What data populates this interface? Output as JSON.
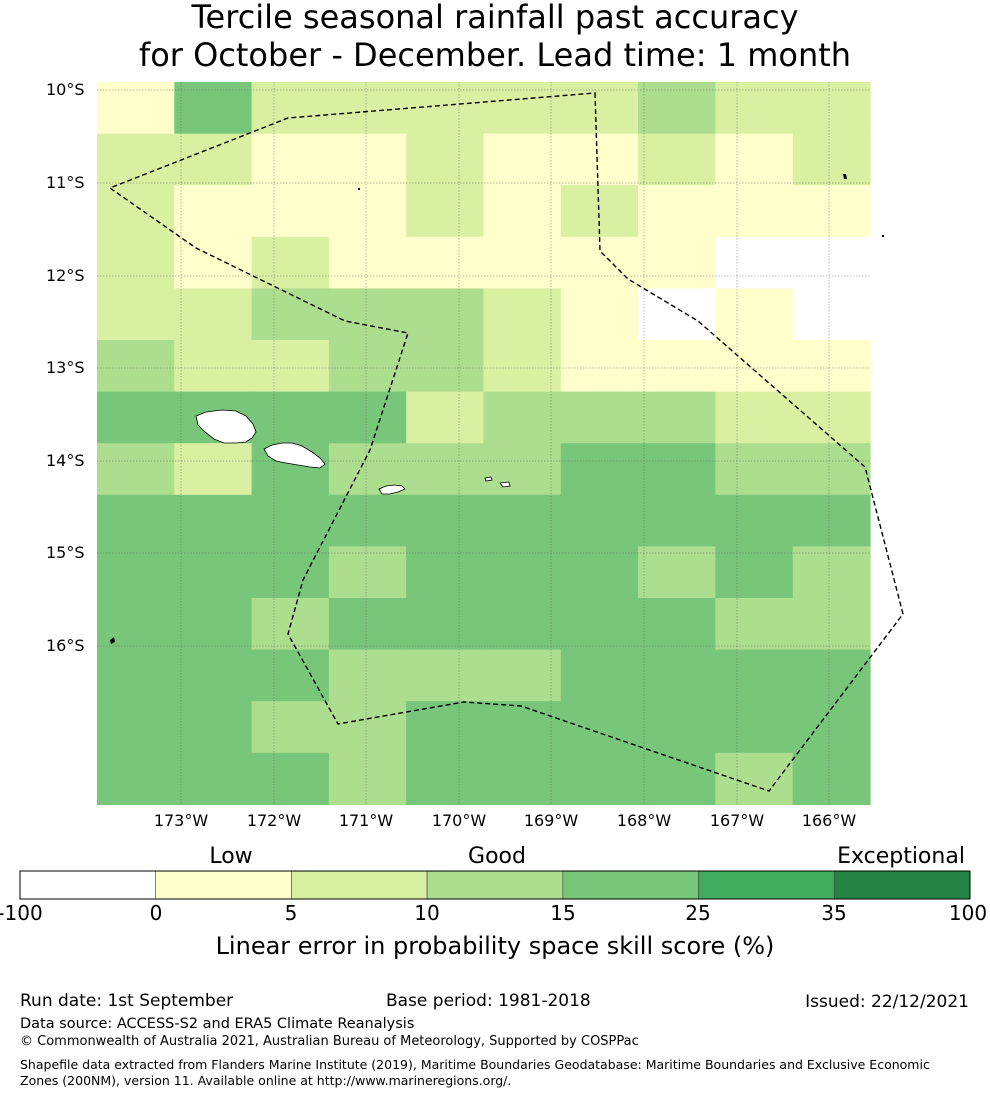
{
  "title": {
    "line1": "Tercile seasonal rainfall past accuracy",
    "line2": "for October - December. Lead time: 1 month"
  },
  "map": {
    "lat_labels": [
      "10°S",
      "11°S",
      "12°S",
      "13°S",
      "14°S",
      "15°S",
      "16°S"
    ],
    "lon_labels": [
      "173°W",
      "172°W",
      "171°W",
      "170°W",
      "169°W",
      "168°W",
      "167°W",
      "166°W"
    ],
    "grid_cols": 10,
    "grid_rows": 14,
    "cell_levels_by_row": [
      [
        1,
        4,
        2,
        2,
        2,
        2,
        2,
        3,
        2,
        2
      ],
      [
        2,
        2,
        1,
        1,
        2,
        1,
        1,
        2,
        1,
        2
      ],
      [
        2,
        1,
        1,
        1,
        2,
        1,
        2,
        1,
        1,
        1
      ],
      [
        2,
        1,
        2,
        1,
        1,
        1,
        1,
        1,
        0,
        0
      ],
      [
        2,
        2,
        3,
        3,
        3,
        2,
        1,
        0,
        1,
        0
      ],
      [
        3,
        2,
        2,
        3,
        3,
        2,
        1,
        1,
        1,
        1
      ],
      [
        4,
        4,
        4,
        4,
        2,
        3,
        3,
        3,
        2,
        2
      ],
      [
        3,
        2,
        4,
        3,
        3,
        3,
        4,
        4,
        3,
        3
      ],
      [
        4,
        4,
        4,
        4,
        4,
        4,
        4,
        4,
        4,
        4
      ],
      [
        4,
        4,
        4,
        3,
        4,
        4,
        4,
        3,
        4,
        3
      ],
      [
        4,
        4,
        3,
        4,
        4,
        4,
        4,
        4,
        3,
        3
      ],
      [
        4,
        4,
        4,
        3,
        3,
        3,
        4,
        4,
        4,
        4
      ],
      [
        4,
        4,
        3,
        3,
        4,
        4,
        4,
        4,
        4,
        4
      ],
      [
        4,
        4,
        4,
        3,
        4,
        4,
        4,
        4,
        3,
        4
      ]
    ],
    "land_color": "#ffffff",
    "boundary_style": "dashed",
    "grid_lines": true
  },
  "colorbar": {
    "categories": [
      "Low",
      "Good",
      "Exceptional"
    ],
    "ticks": [
      "-100",
      "0",
      "5",
      "10",
      "15",
      "25",
      "35",
      "100"
    ],
    "colors": [
      "#ffffff",
      "#ffffcc",
      "#d9f0a3",
      "#addd8e",
      "#78c679",
      "#41ab5d",
      "#238443"
    ],
    "label": "Linear error in probability space skill score (%)"
  },
  "footer": {
    "run_date": "Run date: 1st September",
    "base_period": "Base period: 1981-2018",
    "issued": "Issued: 22/12/2021",
    "data_source": "Data source: ACCESS-S2 and ERA5 Climate Reanalysis",
    "copyright": "© Commonwealth of Australia 2021, Australian Bureau of Meteorology, Supported by COSPPac",
    "shapefile": "Shapefile data extracted from Flanders Marine Institute (2019), Maritime Boundaries Geodatabase: Maritime Boundaries and Exclusive Economic Zones (200NM), version 11. Available online at http://www.marineregions.org/."
  }
}
